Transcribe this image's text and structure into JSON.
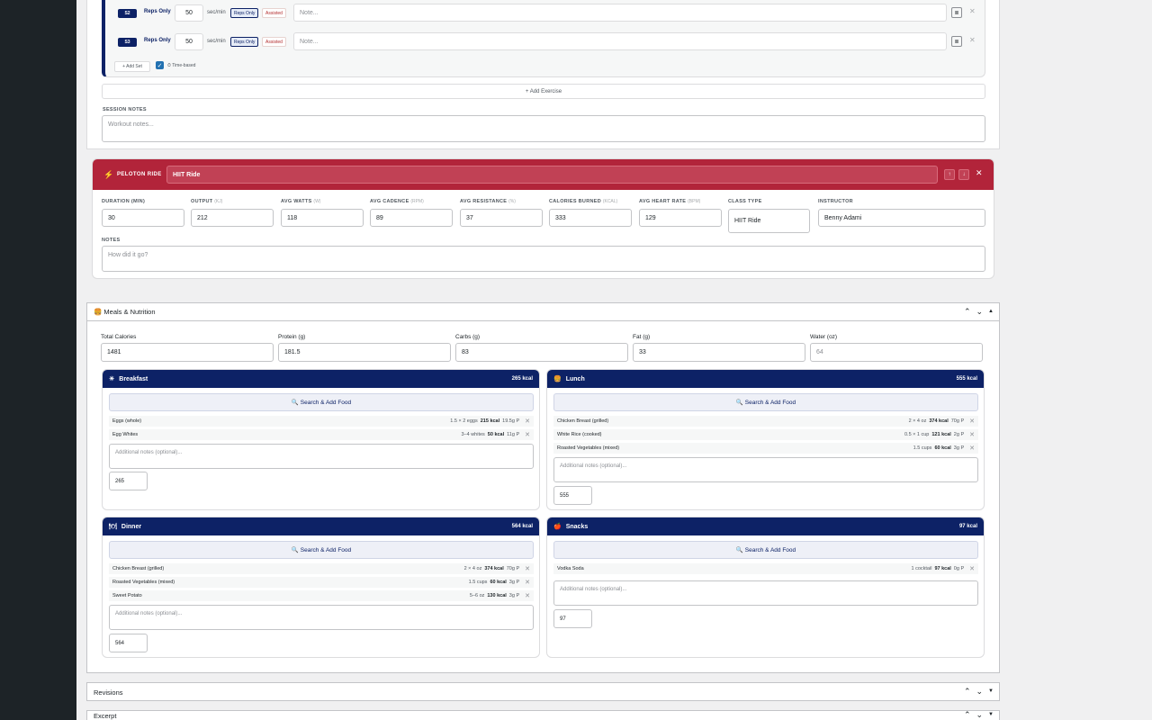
{
  "sets": [
    {
      "num": "S2",
      "type": "Reps Only",
      "value": "50",
      "unit": "sec/min",
      "badge1": "Reps Only",
      "badge2": "Assisted",
      "note_placeholder": "Note..."
    },
    {
      "num": "S3",
      "type": "Reps Only",
      "value": "50",
      "unit": "sec/min",
      "badge1": "Reps Only",
      "badge2": "Assisted",
      "note_placeholder": "Note..."
    }
  ],
  "add_set": "+ Add Set",
  "time_based": "⏱ Time-based",
  "add_exercise": "+ Add Exercise",
  "session_notes": {
    "label": "SESSION NOTES",
    "placeholder": "Workout notes..."
  },
  "peloton": {
    "label": "PELOTON RIDE",
    "name": "HIIT Ride",
    "fields": [
      {
        "label": "DURATION (MIN)",
        "unit": "",
        "value": "30"
      },
      {
        "label": "OUTPUT",
        "unit": "(KJ)",
        "value": "212"
      },
      {
        "label": "AVG WATTS",
        "unit": "(W)",
        "value": "118"
      },
      {
        "label": "AVG CADENCE",
        "unit": "(RPM)",
        "value": "89"
      },
      {
        "label": "AVG RESISTANCE",
        "unit": "(%)",
        "value": "37"
      },
      {
        "label": "CALORIES BURNED",
        "unit": "(KCAL)",
        "value": "333"
      },
      {
        "label": "AVG HEART RATE",
        "unit": "(BPM)",
        "value": "129"
      },
      {
        "label": "CLASS TYPE",
        "unit": "",
        "value": "HIIT Ride"
      },
      {
        "label": "INSTRUCTOR",
        "unit": "",
        "value": "Benny Adami"
      }
    ],
    "notes_label": "NOTES",
    "notes_placeholder": "How did it go?"
  },
  "meals_box": {
    "title": "🍔 Meals & Nutrition"
  },
  "macros": [
    {
      "label": "Total Calories",
      "value": "1481"
    },
    {
      "label": "Protein (g)",
      "value": "181.5"
    },
    {
      "label": "Carbs (g)",
      "value": "83"
    },
    {
      "label": "Fat (g)",
      "value": "33"
    },
    {
      "label": "Water (oz)",
      "value": "64"
    }
  ],
  "search_label": "🔍 Search & Add Food",
  "notes_placeholder": "Additional notes (optional)...",
  "meals": [
    {
      "name": "Breakfast",
      "icon": "☀",
      "kcal": "265 kcal",
      "total": "265",
      "foods": [
        {
          "name": "Eggs (whole)",
          "qty": "1.5 × 2 eggs",
          "kcal": "215 kcal",
          "protein": "19.5g P"
        },
        {
          "name": "Egg Whites",
          "qty": "3–4 whites",
          "kcal": "50 kcal",
          "protein": "11g P"
        }
      ]
    },
    {
      "name": "Lunch",
      "icon": "🍔",
      "kcal": "555 kcal",
      "total": "555",
      "foods": [
        {
          "name": "Chicken Breast (grilled)",
          "qty": "2 × 4 oz",
          "kcal": "374 kcal",
          "protein": "70g P"
        },
        {
          "name": "White Rice (cooked)",
          "qty": "0.5 × 1 cup",
          "kcal": "121 kcal",
          "protein": "2g P"
        },
        {
          "name": "Roasted Vegetables (mixed)",
          "qty": "1.5 cups",
          "kcal": "60 kcal",
          "protein": "3g P"
        }
      ]
    },
    {
      "name": "Dinner",
      "icon": "🍽",
      "kcal": "564 kcal",
      "total": "564",
      "foods": [
        {
          "name": "Chicken Breast (grilled)",
          "qty": "2 × 4 oz",
          "kcal": "374 kcal",
          "protein": "70g P"
        },
        {
          "name": "Roasted Vegetables (mixed)",
          "qty": "1.5 cups",
          "kcal": "60 kcal",
          "protein": "3g P"
        },
        {
          "name": "Sweet Potato",
          "qty": "5–6 oz",
          "kcal": "130 kcal",
          "protein": "3g P"
        }
      ]
    },
    {
      "name": "Snacks",
      "icon": "🍎",
      "kcal": "97 kcal",
      "total": "97",
      "foods": [
        {
          "name": "Vodka Soda",
          "qty": "1 cocktail",
          "kcal": "97 kcal",
          "protein": "0g P"
        }
      ]
    }
  ],
  "revisions_title": "Revisions",
  "excerpt_title": "Excerpt"
}
